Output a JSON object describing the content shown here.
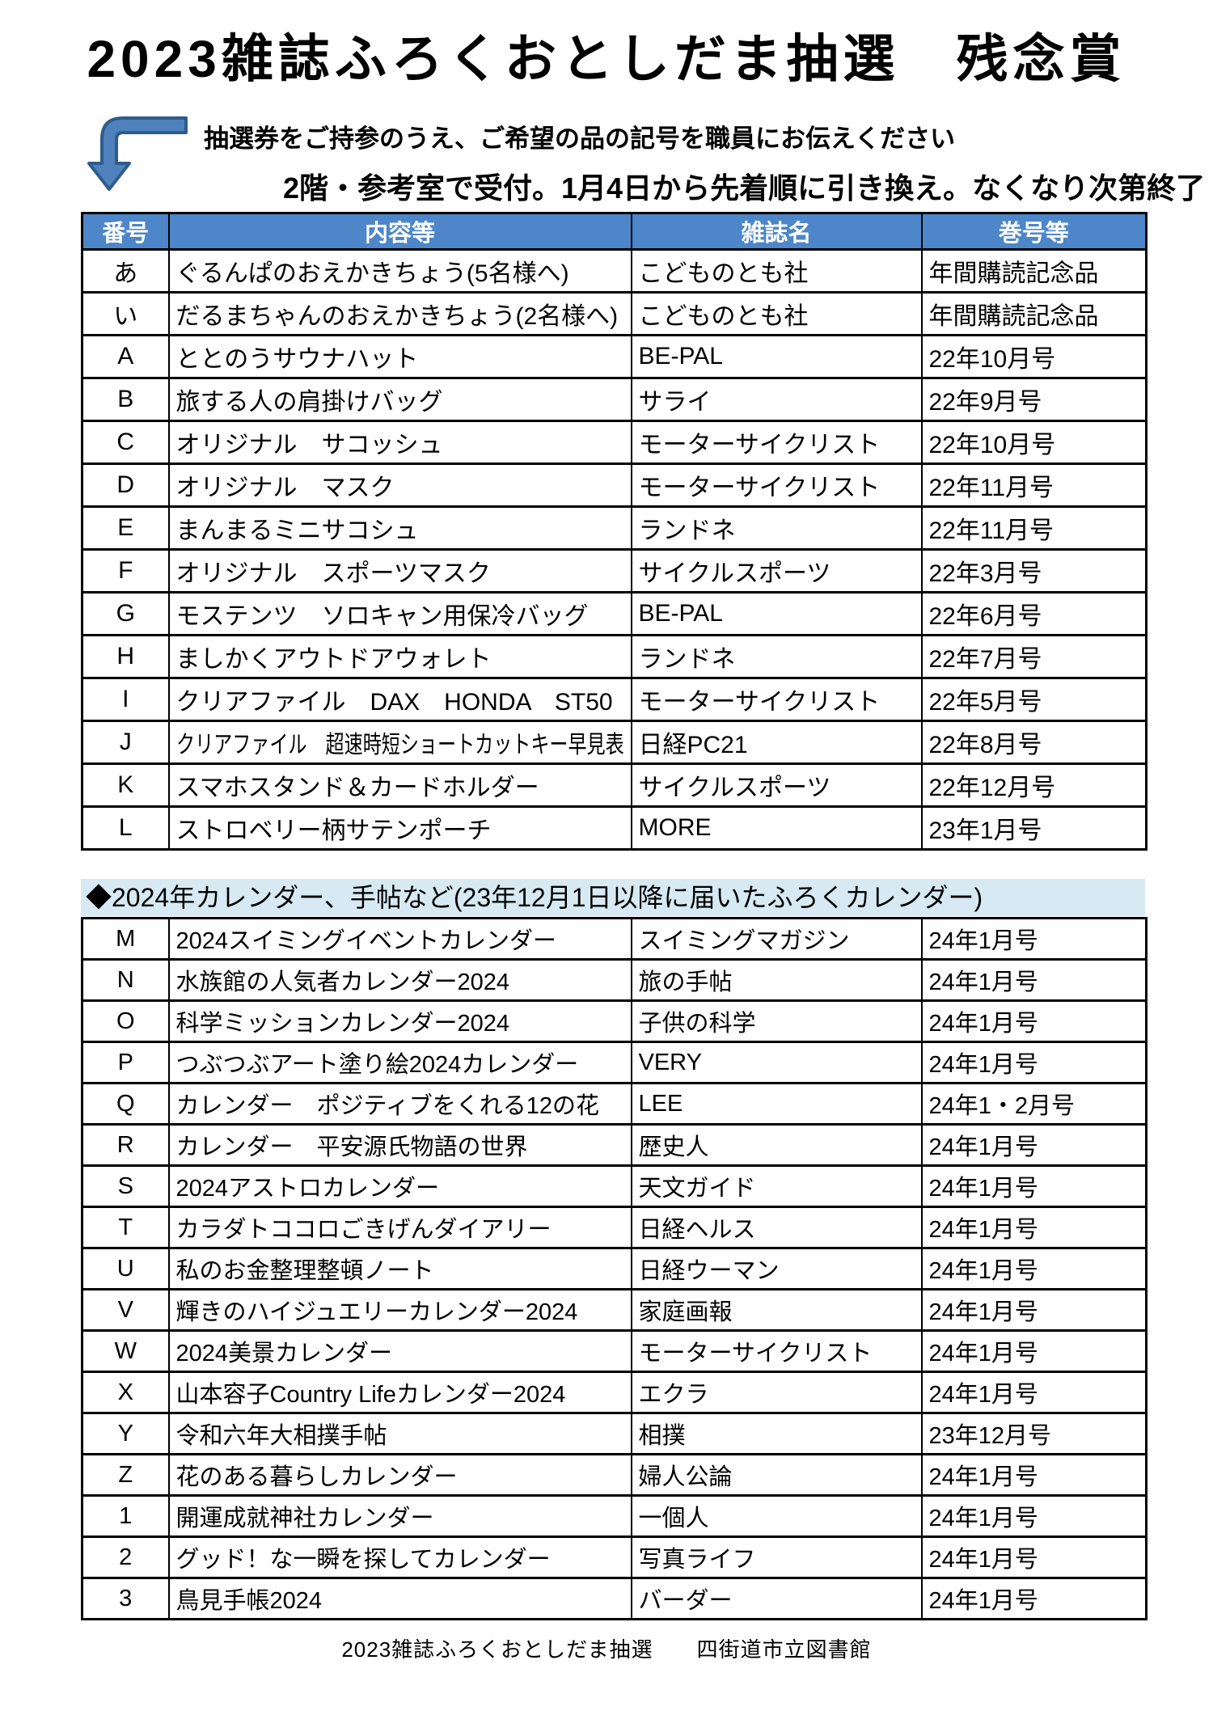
{
  "page": {
    "title": "2023雑誌ふろくおとしだま抽選　残念賞",
    "instructions": {
      "line1": "抽選券をご持参のうえ、ご希望の品の記号を職員にお伝えください",
      "line2": "2階・参考室で受付。1月4日から先着順に引き換え。なくなり次第終了"
    },
    "footer": "2023雑誌ふろくおとしだま抽選　　四街道市立図書館"
  },
  "colors": {
    "header_bg": "#4d86c9",
    "header_text": "#ffffff",
    "section_bg": "#d7eaf4",
    "arrow_fill": "#4f81bd",
    "arrow_stroke": "#2e5d8c"
  },
  "icons": {
    "bent_arrow": "bent-arrow-down-icon"
  },
  "table1": {
    "headers": [
      "番号",
      "内容等",
      "雑誌名",
      "巻号等"
    ],
    "rows": [
      {
        "no": "あ",
        "item": "ぐるんぱのおえかきちょう(5名様へ)",
        "magazine": "こどものとも社",
        "issue": "年間購読記念品"
      },
      {
        "no": "い",
        "item": "だるまちゃんのおえかきちょう(2名様へ)",
        "magazine": "こどものとも社",
        "issue": "年間購読記念品"
      },
      {
        "no": "A",
        "item": "ととのうサウナハット",
        "magazine": "BE-PAL",
        "issue": "22年10月号"
      },
      {
        "no": "B",
        "item": "旅する人の肩掛けバッグ",
        "magazine": "サライ",
        "issue": "22年9月号"
      },
      {
        "no": "C",
        "item": "オリジナル　サコッシュ",
        "magazine": "モーターサイクリスト",
        "issue": "22年10月号"
      },
      {
        "no": "D",
        "item": "オリジナル　マスク",
        "magazine": "モーターサイクリスト",
        "issue": "22年11月号"
      },
      {
        "no": "E",
        "item": "まんまるミニサコシュ",
        "magazine": "ランドネ",
        "issue": "22年11月号"
      },
      {
        "no": "F",
        "item": "オリジナル　スポーツマスク",
        "magazine": "サイクルスポーツ",
        "issue": "22年3月号"
      },
      {
        "no": "G",
        "item": "モステンツ　ソロキャン用保冷バッグ",
        "magazine": "BE-PAL",
        "issue": "22年6月号"
      },
      {
        "no": "H",
        "item": "ましかくアウトドアウォレト",
        "magazine": "ランドネ",
        "issue": "22年7月号"
      },
      {
        "no": "I",
        "item": "クリアファイル　DAX　HONDA　ST50",
        "magazine": "モーターサイクリスト",
        "issue": "22年5月号"
      },
      {
        "no": "J",
        "item": "クリアファイル　超速時短ショートカットキー早見表",
        "magazine": "日経PC21",
        "issue": "22年8月号"
      },
      {
        "no": "K",
        "item": "スマホスタンド＆カードホルダー",
        "magazine": "サイクルスポーツ",
        "issue": "22年12月号"
      },
      {
        "no": "L",
        "item": "ストロベリー柄サテンポーチ",
        "magazine": "MORE",
        "issue": "23年1月号"
      }
    ]
  },
  "section2": {
    "heading": "◆2024年カレンダー、手帖など(23年12月1日以降に届いたふろくカレンダー)"
  },
  "table2": {
    "rows": [
      {
        "no": "M",
        "item": "2024スイミングイベントカレンダー",
        "magazine": "スイミングマガジン",
        "issue": "24年1月号"
      },
      {
        "no": "N",
        "item": "水族館の人気者カレンダー2024",
        "magazine": "旅の手帖",
        "issue": "24年1月号"
      },
      {
        "no": "O",
        "item": "科学ミッションカレンダー2024",
        "magazine": "子供の科学",
        "issue": "24年1月号"
      },
      {
        "no": "P",
        "item": "つぶつぶアート塗り絵2024カレンダー",
        "magazine": "VERY",
        "issue": "24年1月号"
      },
      {
        "no": "Q",
        "item": "カレンダー　ポジティブをくれる12の花",
        "magazine": "LEE",
        "issue": "24年1・2月号"
      },
      {
        "no": "R",
        "item": "カレンダー　平安源氏物語の世界",
        "magazine": "歴史人",
        "issue": "24年1月号"
      },
      {
        "no": "S",
        "item": "2024アストロカレンダー",
        "magazine": "天文ガイド",
        "issue": "24年1月号"
      },
      {
        "no": "T",
        "item": "カラダトココロごきげんダイアリー",
        "magazine": "日経ヘルス",
        "issue": "24年1月号"
      },
      {
        "no": "U",
        "item": "私のお金整理整頓ノート",
        "magazine": "日経ウーマン",
        "issue": "24年1月号"
      },
      {
        "no": "V",
        "item": "輝きのハイジュエリーカレンダー2024",
        "magazine": "家庭画報",
        "issue": "24年1月号"
      },
      {
        "no": "W",
        "item": "2024美景カレンダー",
        "magazine": "モーターサイクリスト",
        "issue": "24年1月号"
      },
      {
        "no": "X",
        "item": "山本容子Country Lifeカレンダー2024",
        "magazine": "エクラ",
        "issue": "24年1月号"
      },
      {
        "no": "Y",
        "item": "令和六年大相撲手帖",
        "magazine": "相撲",
        "issue": "23年12月号"
      },
      {
        "no": "Z",
        "item": "花のある暮らしカレンダー",
        "magazine": "婦人公論",
        "issue": "24年1月号"
      },
      {
        "no": "1",
        "item": "開運成就神社カレンダー",
        "magazine": "一個人",
        "issue": "24年1月号"
      },
      {
        "no": "2",
        "item": "グッド！な一瞬を探してカレンダー",
        "magazine": "写真ライフ",
        "issue": "24年1月号"
      },
      {
        "no": "3",
        "item": "鳥見手帳2024",
        "magazine": "バーダー",
        "issue": "24年1月号"
      }
    ]
  }
}
